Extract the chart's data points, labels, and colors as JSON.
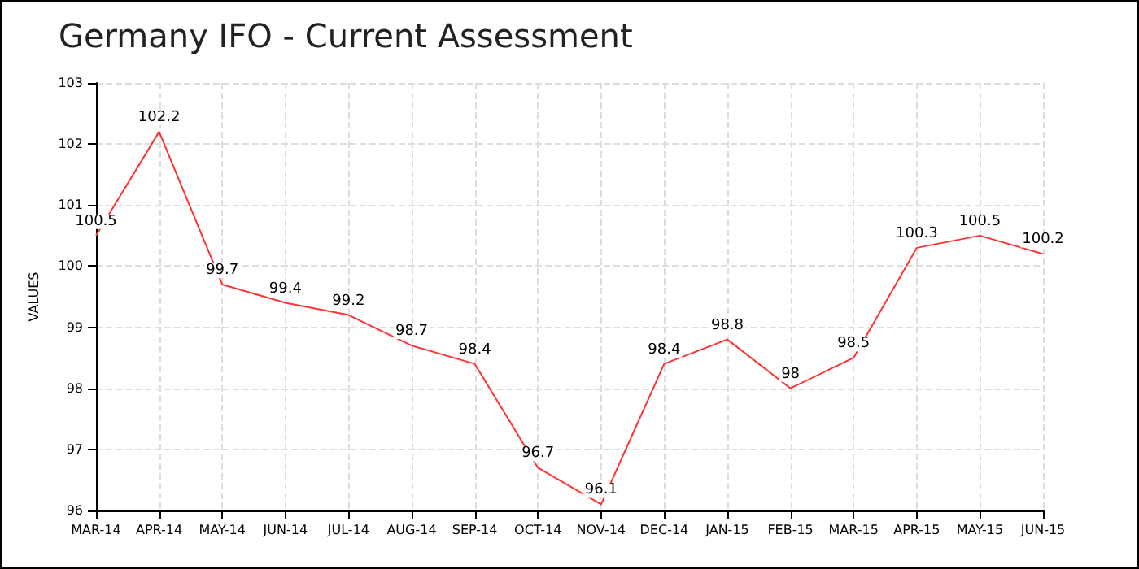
{
  "chart_data": {
    "type": "line",
    "title": "Germany IFO - Current Assessment",
    "ylabel": "VALUES",
    "categories": [
      "MAR-14",
      "APR-14",
      "MAY-14",
      "JUN-14",
      "JUL-14",
      "AUG-14",
      "SEP-14",
      "OCT-14",
      "NOV-14",
      "DEC-14",
      "JAN-15",
      "FEB-15",
      "MAR-15",
      "APR-15",
      "MAY-15",
      "JUN-15"
    ],
    "series": [
      {
        "color": "#ff3333",
        "values": [
          100.5,
          102.2,
          99.7,
          99.4,
          99.2,
          98.7,
          98.4,
          96.7,
          96.1,
          98.4,
          98.8,
          98,
          98.5,
          100.3,
          100.5,
          100.2
        ]
      }
    ],
    "ylim": [
      96,
      103
    ],
    "yticks": [
      96,
      97,
      98,
      99,
      100,
      101,
      102,
      103
    ],
    "grid": true,
    "line_style": "solid",
    "marker": "none",
    "data_labels": true
  }
}
